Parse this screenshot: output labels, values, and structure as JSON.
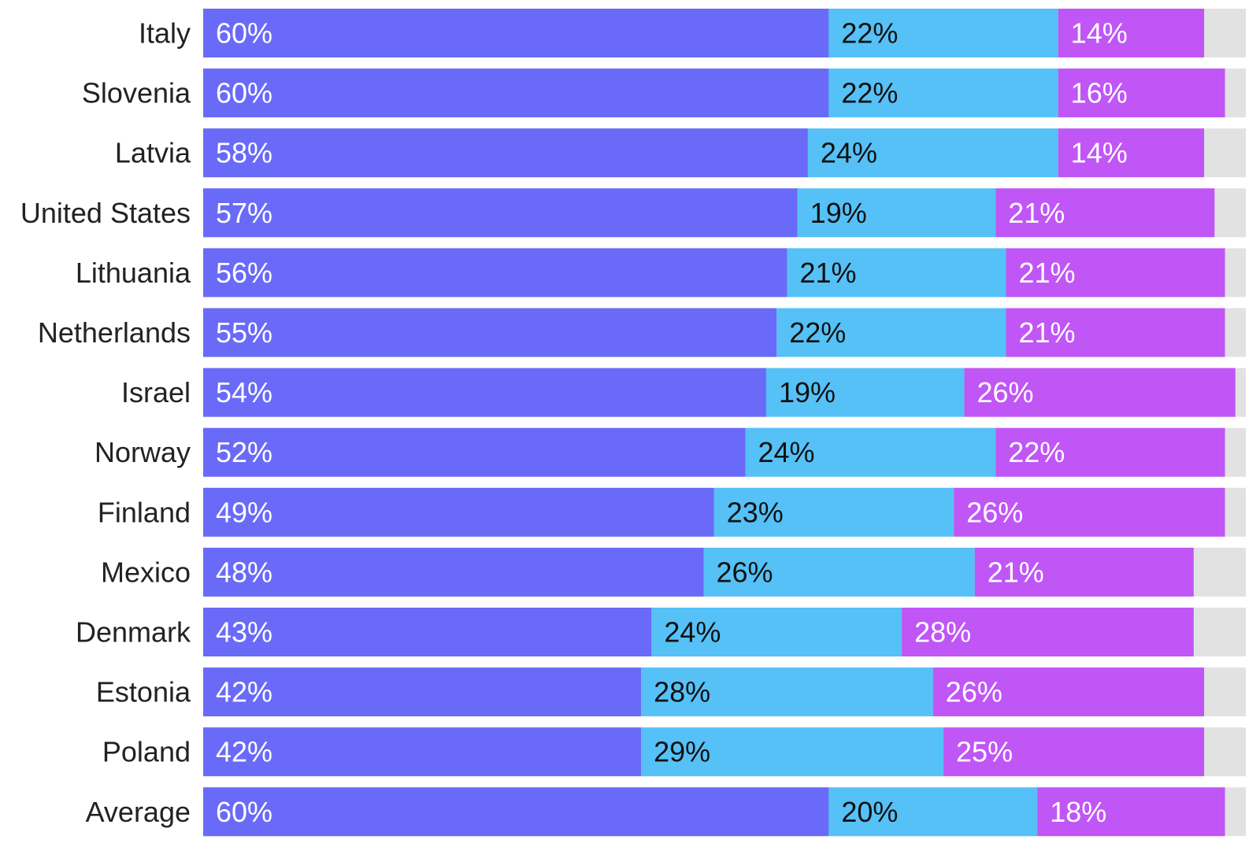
{
  "chart_data": {
    "type": "bar",
    "orientation": "horizontal",
    "stacked": true,
    "title": "",
    "xlabel": "",
    "ylabel": "",
    "grid": false,
    "legend": "none",
    "xlim": [
      0,
      100
    ],
    "categories": [
      "Italy",
      "Slovenia",
      "Latvia",
      "United States",
      "Lithuania",
      "Netherlands",
      "Israel",
      "Norway",
      "Finland",
      "Mexico",
      "Denmark",
      "Estonia",
      "Poland",
      "Average"
    ],
    "series": [
      {
        "color": "#6a6af8",
        "label_color": "#ffffff",
        "values": [
          60,
          60,
          58,
          57,
          56,
          55,
          54,
          52,
          49,
          48,
          43,
          42,
          42,
          60
        ],
        "labels": [
          "60%",
          "60%",
          "58%",
          "57%",
          "56%",
          "55%",
          "54%",
          "52%",
          "49%",
          "48%",
          "43%",
          "42%",
          "42%",
          "60%"
        ]
      },
      {
        "color": "#55c1f7",
        "label_color": "#111111",
        "values": [
          22,
          22,
          24,
          19,
          21,
          22,
          19,
          24,
          23,
          26,
          24,
          28,
          29,
          20
        ],
        "labels": [
          "22%",
          "22%",
          "24%",
          "19%",
          "21%",
          "22%",
          "19%",
          "24%",
          "23%",
          "26%",
          "24%",
          "28%",
          "29%",
          "20%"
        ]
      },
      {
        "color": "#c056f6",
        "label_color": "#ffffff",
        "values": [
          14,
          16,
          14,
          21,
          21,
          21,
          26,
          22,
          26,
          21,
          28,
          26,
          25,
          18
        ],
        "labels": [
          "14%",
          "16%",
          "14%",
          "21%",
          "21%",
          "21%",
          "26%",
          "22%",
          "26%",
          "21%",
          "28%",
          "26%",
          "25%",
          "18%"
        ]
      }
    ],
    "remainder_color": "#e2e2e2",
    "category_label_color": "#222222"
  }
}
